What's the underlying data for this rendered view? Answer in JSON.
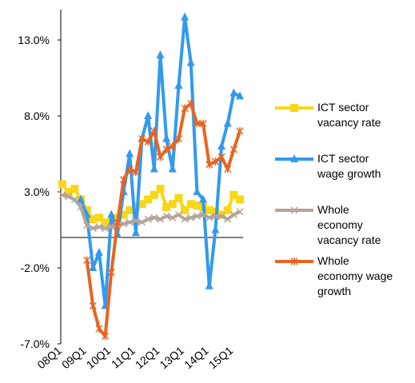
{
  "chart_data": {
    "type": "line",
    "categories": [
      "08Q1",
      null,
      null,
      null,
      "09Q1",
      null,
      null,
      null,
      "10Q1",
      null,
      null,
      null,
      "11Q1",
      null,
      null,
      null,
      "12Q1",
      null,
      null,
      null,
      "13Q1",
      null,
      null,
      null,
      "14Q1",
      null,
      null,
      null,
      "15Q1",
      null
    ],
    "ylim": [
      -7,
      15
    ],
    "yticks": [
      {
        "value": -7,
        "label": "-7.0%"
      },
      {
        "value": -2,
        "label": "-2.0%"
      },
      {
        "value": 3,
        "label": "3.0%"
      },
      {
        "value": 8,
        "label": "8.0%"
      },
      {
        "value": 13,
        "label": "13.0%"
      }
    ],
    "series": [
      {
        "name": "ICT sector vacancy rate",
        "color": "#f9d616",
        "marker": "square",
        "values": [
          3.5,
          3.0,
          3.2,
          2.5,
          1.8,
          1.2,
          1.3,
          1.0,
          1.0,
          1.3,
          1.5,
          1.8,
          2.0,
          2.2,
          2.5,
          2.8,
          3.2,
          2.0,
          2.2,
          2.6,
          1.8,
          2.2,
          2.1,
          2.0,
          1.8,
          1.7,
          1.5,
          1.8,
          2.8,
          2.5
        ]
      },
      {
        "name": "ICT sector wage growth",
        "color": "#3399ee",
        "marker": "triangle",
        "values": [
          null,
          null,
          null,
          2.5,
          1.5,
          -2.0,
          -1.0,
          -4.5,
          1.5,
          0.2,
          3.0,
          5.5,
          0.3,
          6.5,
          8.0,
          4.5,
          12.0,
          6.5,
          4.5,
          10.0,
          14.5,
          11.5,
          3.0,
          2.5,
          -3.2,
          0.5,
          6.0,
          7.5,
          9.5,
          9.3
        ]
      },
      {
        "name": "Whole economy vacancy rate",
        "color": "#b5a49a",
        "marker": "x",
        "values": [
          2.8,
          2.7,
          2.5,
          2.0,
          0.8,
          0.6,
          0.7,
          0.6,
          0.7,
          0.8,
          0.9,
          1.0,
          1.1,
          1.0,
          1.2,
          1.3,
          1.2,
          1.4,
          1.3,
          1.5,
          1.2,
          1.3,
          1.4,
          1.5,
          1.3,
          1.4,
          1.4,
          1.2,
          1.5,
          1.7
        ]
      },
      {
        "name": "Whole economy wage growth",
        "color": "#e8641e",
        "marker": "star",
        "values": [
          null,
          null,
          null,
          null,
          -1.5,
          -4.5,
          -6.0,
          -6.5,
          -2.3,
          1.0,
          3.8,
          4.5,
          4.3,
          6.5,
          6.3,
          7.0,
          5.3,
          5.8,
          6.0,
          6.5,
          8.5,
          8.8,
          7.5,
          7.5,
          4.8,
          5.0,
          5.3,
          4.5,
          5.8,
          7.0
        ]
      }
    ]
  }
}
